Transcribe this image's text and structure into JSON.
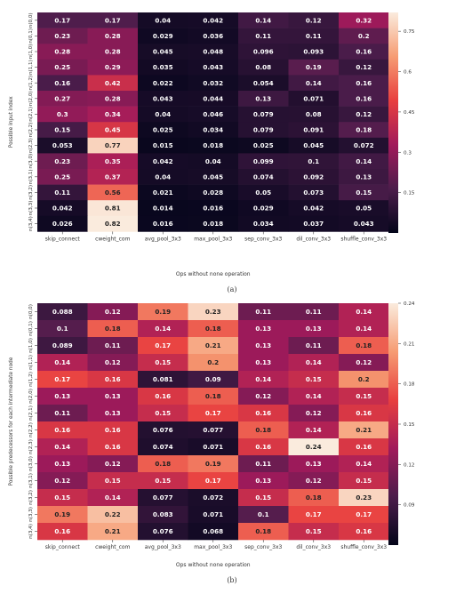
{
  "chart_data": [
    {
      "type": "heatmap",
      "caption": "(a)",
      "xlabel": "Ops without none operation",
      "ylabel": "Possible input index",
      "columns": [
        "skip_connect",
        "cweight_com",
        "avg_pool_3x3",
        "max_pool_3x3",
        "sep_conv_3x3",
        "dil_conv_3x3",
        "shuffle_conv_3x3"
      ],
      "rows": [
        "n(0,0)",
        "n(0,1)",
        "n(1,0)",
        "n(1,1)",
        "n(1,2)",
        "n(2,0)",
        "n(2,1)",
        "n(2,2)",
        "n(2,3)",
        "n(3,0)",
        "n(3,1)",
        "n(3,2)",
        "n(3,3)",
        "n(3,4)"
      ],
      "values": [
        [
          0.17,
          0.17,
          0.04,
          0.042,
          0.14,
          0.12,
          0.32
        ],
        [
          0.23,
          0.28,
          0.029,
          0.036,
          0.11,
          0.11,
          0.2
        ],
        [
          0.28,
          0.28,
          0.045,
          0.048,
          0.096,
          0.093,
          0.16
        ],
        [
          0.25,
          0.29,
          0.035,
          0.043,
          0.08,
          0.19,
          0.12
        ],
        [
          0.16,
          0.42,
          0.022,
          0.032,
          0.054,
          0.14,
          0.16
        ],
        [
          0.27,
          0.28,
          0.043,
          0.044,
          0.13,
          0.071,
          0.16
        ],
        [
          0.3,
          0.34,
          0.04,
          0.046,
          0.079,
          0.08,
          0.12
        ],
        [
          0.15,
          0.45,
          0.025,
          0.034,
          0.079,
          0.091,
          0.18
        ],
        [
          0.053,
          0.77,
          0.015,
          0.018,
          0.025,
          0.045,
          0.072
        ],
        [
          0.23,
          0.35,
          0.042,
          0.04,
          0.099,
          0.1,
          0.14
        ],
        [
          0.25,
          0.37,
          0.04,
          0.045,
          0.074,
          0.092,
          0.13
        ],
        [
          0.11,
          0.56,
          0.021,
          0.028,
          0.05,
          0.073,
          0.15
        ],
        [
          0.042,
          0.81,
          0.014,
          0.016,
          0.029,
          0.042,
          0.05
        ],
        [
          0.026,
          0.82,
          0.016,
          0.018,
          0.034,
          0.037,
          0.043
        ]
      ],
      "vmin": 0.0,
      "vmax": 0.82,
      "colorbar_ticks": [
        0.15,
        0.3,
        0.45,
        0.6,
        0.75
      ],
      "colormap": [
        "#03051a",
        "#4c1d4b",
        "#a11a5b",
        "#e83f3f",
        "#f69c73",
        "#faebdd"
      ]
    },
    {
      "type": "heatmap",
      "caption": "(b)",
      "xlabel": "Ops without none operation",
      "ylabel": "Possible predecessors for each intermediate node",
      "columns": [
        "skip_connect",
        "cweight_com",
        "avg_pool_3x3",
        "max_pool_3x3",
        "sep_conv_3x3",
        "dil_conv_3x3",
        "shuffle_conv_3x3"
      ],
      "rows": [
        "n(0,0)",
        "n(0,1)",
        "n(1,0)",
        "n(1,1)",
        "n(1,2)",
        "n(2,0)",
        "n(2,1)",
        "n(2,2)",
        "n(2,3)",
        "n(3,0)",
        "n(3,1)",
        "n(3,2)",
        "n(3,3)",
        "n(3,4)"
      ],
      "values": [
        [
          0.088,
          0.12,
          0.19,
          0.23,
          0.11,
          0.11,
          0.14
        ],
        [
          0.1,
          0.18,
          0.14,
          0.18,
          0.13,
          0.13,
          0.14
        ],
        [
          0.089,
          0.11,
          0.17,
          0.21,
          0.13,
          0.11,
          0.18
        ],
        [
          0.14,
          0.12,
          0.15,
          0.2,
          0.13,
          0.14,
          0.12
        ],
        [
          0.17,
          0.16,
          0.081,
          0.09,
          0.14,
          0.15,
          0.2
        ],
        [
          0.13,
          0.13,
          0.16,
          0.18,
          0.12,
          0.14,
          0.15
        ],
        [
          0.11,
          0.13,
          0.15,
          0.17,
          0.16,
          0.12,
          0.16
        ],
        [
          0.16,
          0.16,
          0.076,
          0.077,
          0.18,
          0.14,
          0.21
        ],
        [
          0.14,
          0.16,
          0.074,
          0.071,
          0.16,
          0.24,
          0.16
        ],
        [
          0.13,
          0.12,
          0.18,
          0.19,
          0.11,
          0.13,
          0.14
        ],
        [
          0.12,
          0.15,
          0.15,
          0.17,
          0.13,
          0.12,
          0.15
        ],
        [
          0.15,
          0.14,
          0.077,
          0.072,
          0.15,
          0.18,
          0.23
        ],
        [
          0.19,
          0.22,
          0.083,
          0.071,
          0.1,
          0.17,
          0.17
        ],
        [
          0.16,
          0.21,
          0.076,
          0.068,
          0.18,
          0.15,
          0.16
        ]
      ],
      "vmin": 0.06,
      "vmax": 0.24,
      "colorbar_ticks": [
        0.09,
        0.12,
        0.15,
        0.18,
        0.21,
        0.24
      ],
      "colormap": [
        "#03051a",
        "#4c1d4b",
        "#a11a5b",
        "#e83f3f",
        "#f69c73",
        "#faebdd"
      ]
    }
  ]
}
